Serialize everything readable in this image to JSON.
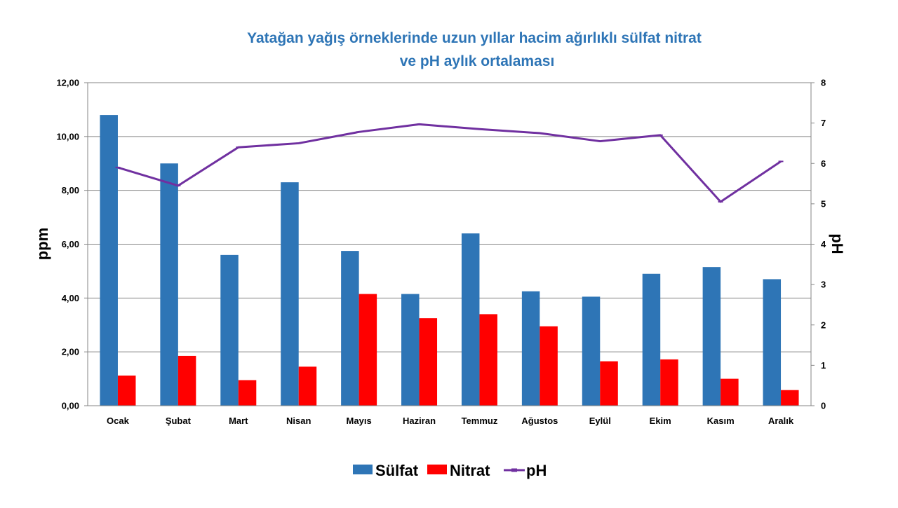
{
  "chart_data": {
    "type": "bar",
    "title_line1": "Yatağan yağış örneklerinde uzun yıllar hacim ağırlıklı sülfat nitrat",
    "title_line2": "ve pH aylık ortalaması",
    "ylabel": "ppm",
    "y2label": "pH",
    "categories": [
      "Ocak",
      "Şubat",
      "Mart",
      "Nisan",
      "Mayıs",
      "Haziran",
      "Temmuz",
      "Ağustos",
      "Eylül",
      "Ekim",
      "Kasım",
      "Aralık"
    ],
    "ylim": [
      0,
      12
    ],
    "y_ticks": [
      "0,00",
      "2,00",
      "4,00",
      "6,00",
      "8,00",
      "10,00",
      "12,00"
    ],
    "y2lim": [
      0,
      8
    ],
    "y2_ticks": [
      "0",
      "1",
      "2",
      "3",
      "4",
      "5",
      "6",
      "7",
      "8"
    ],
    "grid": true,
    "legend_position": "bottom",
    "series": [
      {
        "name": "Sülfat",
        "type": "bar",
        "axis": "left",
        "color": "#2E75B6",
        "values": [
          10.8,
          9.0,
          5.6,
          8.3,
          5.75,
          4.15,
          6.4,
          4.25,
          4.05,
          4.9,
          5.15,
          4.7
        ]
      },
      {
        "name": "Nitrat",
        "type": "bar",
        "axis": "left",
        "color": "#FF0000",
        "values": [
          1.12,
          1.85,
          0.95,
          1.45,
          4.15,
          3.25,
          3.4,
          2.95,
          1.65,
          1.72,
          1.0,
          0.58
        ]
      },
      {
        "name": "pH",
        "type": "line",
        "axis": "right",
        "color": "#7030A0",
        "values": [
          5.9,
          5.45,
          6.4,
          6.5,
          6.78,
          6.97,
          6.85,
          6.75,
          6.55,
          6.7,
          5.05,
          6.05
        ]
      }
    ]
  },
  "colors": {
    "title": "#2E75B6",
    "grid": "#868686",
    "axis": "#868686"
  }
}
